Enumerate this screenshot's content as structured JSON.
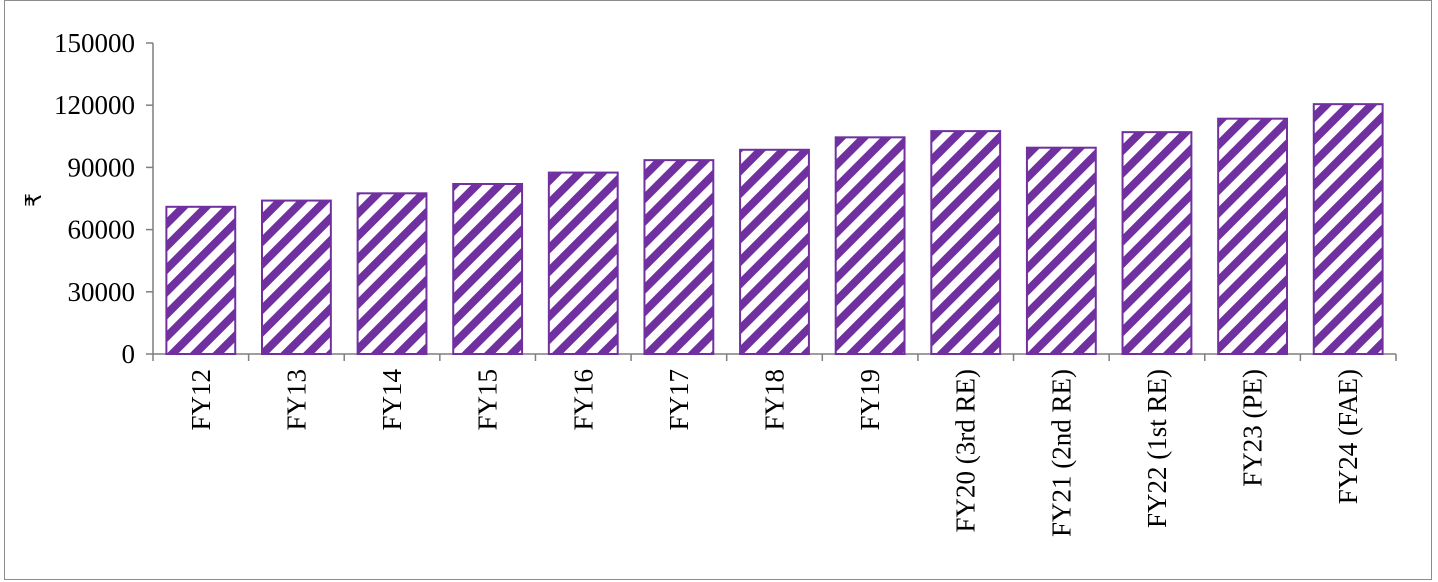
{
  "chart_data": {
    "type": "bar",
    "title": "",
    "xlabel": "",
    "ylabel": "₹",
    "ylim": [
      0,
      150000
    ],
    "yticks": [
      0,
      30000,
      60000,
      90000,
      120000,
      150000
    ],
    "categories": [
      "FY12",
      "FY13",
      "FY14",
      "FY15",
      "FY16",
      "FY17",
      "FY18",
      "FY19",
      "FY20 (3rd RE)",
      "FY21 (2nd RE)",
      "FY22 (1st RE)",
      "FY23 (PE)",
      "FY24 (FAE)"
    ],
    "values": [
      71000,
      74000,
      77500,
      82000,
      87500,
      93500,
      98500,
      104500,
      107500,
      99500,
      107000,
      113500,
      120500
    ],
    "grid": false,
    "legend": "none",
    "colors": {
      "bar_stroke": "#7030a0",
      "bar_hatch": "#7030a0",
      "bar_fill_background": "#ffffff",
      "axis": "#7f7f7f"
    },
    "bar_pattern": "diagonal-hatch"
  }
}
